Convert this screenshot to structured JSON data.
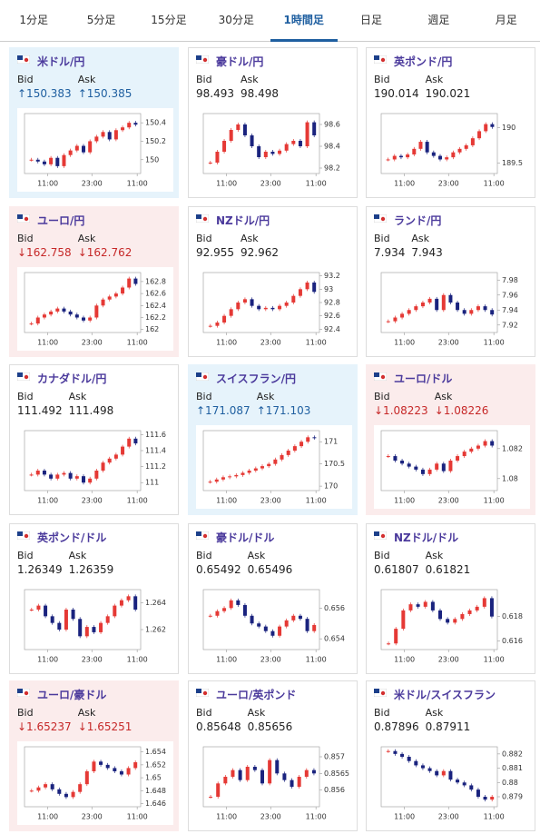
{
  "tabs": [
    "1分足",
    "5分足",
    "15分足",
    "30分足",
    "1時間足",
    "日足",
    "週足",
    "月足"
  ],
  "active_tab": 4,
  "labels": {
    "bid": "Bid",
    "ask": "Ask"
  },
  "panels": [
    {
      "title": "米ドル/円",
      "trend": "up",
      "bid": "↑150.383",
      "ask": "↑150.385",
      "xlabels": [
        "11:00",
        "23:00",
        "11:00"
      ],
      "ylim": [
        149.85,
        150.5
      ],
      "yticks": [
        150,
        150.2,
        150.4
      ],
      "closes": [
        150.0,
        149.98,
        149.95,
        150.02,
        149.93,
        150.05,
        150.1,
        150.15,
        150.08,
        150.2,
        150.25,
        150.3,
        150.22,
        150.32,
        150.35,
        150.4,
        150.38
      ]
    },
    {
      "title": "豪ドル/円",
      "trend": null,
      "bid": "98.493",
      "ask": "98.498",
      "xlabels": [
        "11:00",
        "23:00",
        "11:00"
      ],
      "ylim": [
        98.15,
        98.7
      ],
      "yticks": [
        98.2,
        98.4,
        98.6
      ],
      "closes": [
        98.25,
        98.35,
        98.45,
        98.55,
        98.6,
        98.5,
        98.4,
        98.3,
        98.35,
        98.33,
        98.36,
        98.42,
        98.45,
        98.4,
        98.62,
        98.5
      ]
    },
    {
      "title": "英ポンド/円",
      "trend": null,
      "bid": "190.014",
      "ask": "190.021",
      "xlabels": [
        "11:00",
        "23:00",
        "11:00"
      ],
      "ylim": [
        189.35,
        190.2
      ],
      "yticks": [
        189.5,
        190
      ],
      "closes": [
        189.55,
        189.6,
        189.58,
        189.62,
        189.7,
        189.8,
        189.65,
        189.6,
        189.55,
        189.58,
        189.65,
        189.7,
        189.75,
        189.85,
        189.95,
        190.05,
        190.01
      ]
    },
    {
      "title": "ユーロ/円",
      "trend": "down",
      "bid": "↓162.758",
      "ask": "↓162.762",
      "xlabels": [
        "11:00",
        "23:00",
        "11:00"
      ],
      "ylim": [
        161.95,
        162.95
      ],
      "yticks": [
        162,
        162.2,
        162.4,
        162.6,
        162.8
      ],
      "closes": [
        162.1,
        162.2,
        162.25,
        162.3,
        162.35,
        162.3,
        162.25,
        162.2,
        162.15,
        162.2,
        162.4,
        162.5,
        162.55,
        162.6,
        162.7,
        162.85,
        162.76
      ]
    },
    {
      "title": "NZドル/円",
      "trend": null,
      "bid": "92.955",
      "ask": "92.962",
      "xlabels": [
        "11:00",
        "23:00",
        "11:00"
      ],
      "ylim": [
        92.35,
        93.25
      ],
      "yticks": [
        92.4,
        92.6,
        92.8,
        93,
        93.2
      ],
      "closes": [
        92.45,
        92.5,
        92.6,
        92.7,
        92.8,
        92.85,
        92.75,
        92.7,
        92.72,
        92.7,
        92.75,
        92.8,
        92.9,
        93.0,
        93.1,
        92.96
      ]
    },
    {
      "title": "ランド/円",
      "trend": null,
      "bid": "7.934",
      "ask": "7.943",
      "xlabels": [
        "11:00",
        "23:00",
        "11:00"
      ],
      "ylim": [
        7.91,
        7.99
      ],
      "yticks": [
        7.92,
        7.94,
        7.96,
        7.98
      ],
      "closes": [
        7.925,
        7.93,
        7.935,
        7.94,
        7.945,
        7.95,
        7.955,
        7.94,
        7.96,
        7.95,
        7.94,
        7.935,
        7.94,
        7.945,
        7.94,
        7.934
      ]
    },
    {
      "title": "カナダドル/円",
      "trend": null,
      "bid": "111.492",
      "ask": "111.498",
      "xlabels": [
        "11:00",
        "23:00",
        "11:00"
      ],
      "ylim": [
        110.9,
        111.65
      ],
      "yticks": [
        111,
        111.2,
        111.4,
        111.6
      ],
      "closes": [
        111.1,
        111.15,
        111.1,
        111.05,
        111.1,
        111.12,
        111.05,
        111.08,
        111.0,
        111.05,
        111.15,
        111.25,
        111.3,
        111.35,
        111.45,
        111.55,
        111.49
      ]
    },
    {
      "title": "スイスフラン/円",
      "trend": "up",
      "bid": "↑171.087",
      "ask": "↑171.103",
      "xlabels": [
        "11:00",
        "23:00",
        "11:00"
      ],
      "ylim": [
        169.9,
        171.25
      ],
      "yticks": [
        170,
        170.5,
        171
      ],
      "closes": [
        170.1,
        170.15,
        170.2,
        170.22,
        170.25,
        170.3,
        170.35,
        170.4,
        170.45,
        170.5,
        170.6,
        170.7,
        170.8,
        170.9,
        171.0,
        171.1,
        171.09
      ]
    },
    {
      "title": "ユーロ/ドル",
      "trend": "down",
      "bid": "↓1.08223",
      "ask": "↓1.08226",
      "xlabels": [
        "11:00",
        "23:00",
        "11:00"
      ],
      "ylim": [
        1.0792,
        1.0832
      ],
      "yticks": [
        1.08,
        1.082
      ],
      "closes": [
        1.0815,
        1.0812,
        1.081,
        1.0808,
        1.0806,
        1.0803,
        1.0806,
        1.081,
        1.0805,
        1.0812,
        1.0815,
        1.0818,
        1.082,
        1.0822,
        1.0825,
        1.0822
      ]
    },
    {
      "title": "英ポンド/ドル",
      "trend": null,
      "bid": "1.26349",
      "ask": "1.26359",
      "xlabels": [
        "11:00",
        "23:00",
        "11:00"
      ],
      "ylim": [
        1.2605,
        1.265
      ],
      "yticks": [
        1.262,
        1.264
      ],
      "closes": [
        1.2635,
        1.2638,
        1.263,
        1.2625,
        1.262,
        1.2635,
        1.2628,
        1.2615,
        1.2622,
        1.2618,
        1.2625,
        1.263,
        1.2638,
        1.2642,
        1.2645,
        1.2635
      ]
    },
    {
      "title": "豪ドル/ドル",
      "trend": null,
      "bid": "0.65492",
      "ask": "0.65496",
      "xlabels": [
        "11:00",
        "23:00",
        "11:00"
      ],
      "ylim": [
        0.6533,
        0.6572
      ],
      "yticks": [
        0.654,
        0.656
      ],
      "closes": [
        0.6555,
        0.6558,
        0.656,
        0.6565,
        0.6562,
        0.6555,
        0.655,
        0.6548,
        0.6545,
        0.6542,
        0.6548,
        0.6552,
        0.6555,
        0.6553,
        0.6545,
        0.6549
      ]
    },
    {
      "title": "NZドル/ドル",
      "trend": null,
      "bid": "0.61807",
      "ask": "0.61821",
      "xlabels": [
        "11:00",
        "23:00",
        "11:00"
      ],
      "ylim": [
        0.6153,
        0.6202
      ],
      "yticks": [
        0.616,
        0.618
      ],
      "closes": [
        0.6158,
        0.617,
        0.6185,
        0.619,
        0.6188,
        0.6192,
        0.6185,
        0.6178,
        0.6175,
        0.6178,
        0.6182,
        0.6185,
        0.6188,
        0.6195,
        0.618
      ]
    },
    {
      "title": "ユーロ/豪ドル",
      "trend": "down",
      "bid": "↓1.65237",
      "ask": "↓1.65251",
      "xlabels": [
        "11:00",
        "23:00",
        "11:00"
      ],
      "ylim": [
        1.6455,
        1.6548
      ],
      "yticks": [
        1.646,
        1.648,
        1.65,
        1.652,
        1.654
      ],
      "closes": [
        1.648,
        1.6485,
        1.649,
        1.6482,
        1.6475,
        1.647,
        1.6478,
        1.649,
        1.651,
        1.6525,
        1.652,
        1.6515,
        1.651,
        1.6505,
        1.6515,
        1.6524
      ]
    },
    {
      "title": "ユーロ/英ポンド",
      "trend": null,
      "bid": "0.85648",
      "ask": "0.85656",
      "xlabels": [
        "11:00",
        "23:00",
        "11:00"
      ],
      "ylim": [
        0.8555,
        0.8573
      ],
      "yticks": [
        0.856,
        0.8565,
        0.857
      ],
      "closes": [
        0.8558,
        0.8562,
        0.8564,
        0.8566,
        0.8563,
        0.8567,
        0.8566,
        0.8562,
        0.8569,
        0.8565,
        0.8563,
        0.8561,
        0.8564,
        0.8566,
        0.8565
      ]
    },
    {
      "title": "米ドル/スイスフラン",
      "trend": null,
      "bid": "0.87896",
      "ask": "0.87911",
      "xlabels": [
        "11:00",
        "23:00",
        "11:00"
      ],
      "ylim": [
        0.8783,
        0.8825
      ],
      "yticks": [
        0.879,
        0.88,
        0.881,
        0.882
      ],
      "closes": [
        0.8822,
        0.882,
        0.8818,
        0.8815,
        0.8812,
        0.881,
        0.8808,
        0.8805,
        0.8808,
        0.8802,
        0.88,
        0.8798,
        0.8795,
        0.879,
        0.8788,
        0.879
      ]
    }
  ]
}
